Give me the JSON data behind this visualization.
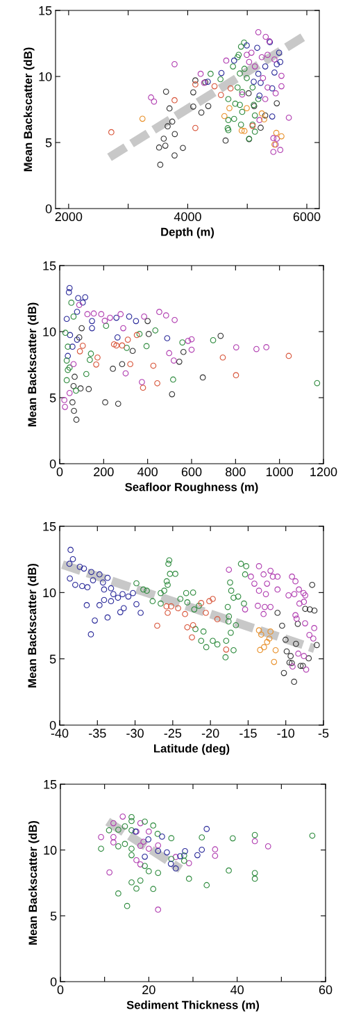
{
  "chart_data": [
    {
      "type": "scatter",
      "xlabel": "Depth (m)",
      "ylabel": "Mean Backscatter (dB)",
      "xlim": [
        1780,
        6210
      ],
      "ylim": [
        0,
        15
      ],
      "xticks": [
        2000,
        {
          "value": 3000,
          "label": null
        },
        4000,
        {
          "value": 5000,
          "label": null
        },
        6000
      ],
      "yticks": [
        0,
        5,
        10,
        15
      ],
      "marker": "circle",
      "series": [
        {
          "type": "line",
          "marker": "none",
          "color": "#c8c8c8",
          "line_style": "dashed",
          "x": [
            2686,
            5961
          ],
          "values": [
            3.88,
            13.05
          ]
        },
        {
          "color": "#333333",
          "x": [
            3636,
            3694,
            3740,
            3663,
            3783,
            3597,
            3519,
            3624,
            3919,
            3779,
            3539,
            4128,
            4093,
            4093,
            4229,
            4345,
            4295,
            4636,
            5023,
            5116,
            5225,
            5302,
            5496,
            5031
          ],
          "values": [
            8.85,
            7.58,
            6.58,
            6.23,
            5.64,
            5.29,
            4.62,
            4.76,
            4.59,
            4.02,
            3.32,
            9.7,
            8.8,
            7.72,
            7.27,
            7.76,
            9.56,
            5.15,
            8.73,
            7.76,
            6.12,
            7.05,
            7.97,
            5.26
          ]
        },
        {
          "color": "#2e8b3e",
          "x": [
            4384,
            4550,
            4895,
            4946,
            4837,
            4876,
            4837,
            4915,
            4682,
            4798,
            4876,
            4682,
            4779,
            4671,
            4682,
            4895,
            4915,
            5031,
            5128,
            5089,
            5128,
            5109,
            4992,
            4953,
            4760,
            4856,
            5089,
            5186
          ],
          "values": [
            10.2,
            9.79,
            12.26,
            12.56,
            11.46,
            10.23,
            9.17,
            8.82,
            8.29,
            7.94,
            7.85,
            6.7,
            6.79,
            6.08,
            5.94,
            6.35,
            7.32,
            5.29,
            5.82,
            6.35,
            7.05,
            7.85,
            9.88,
            10.58,
            10.76,
            11.64,
            9.17,
            8.29
          ]
        },
        {
          "color": "#2a2a9a",
          "x": [
            4566,
            4779,
            4992,
            5167,
            5380,
            5535,
            5554,
            5457,
            5419,
            5205,
            5225,
            5109,
            5419,
            4337,
            5186,
            5302,
            5496
          ],
          "values": [
            10.26,
            11.2,
            12.35,
            12.17,
            12.6,
            11.8,
            11.1,
            10.3,
            9.1,
            8.55,
            9.52,
            9.6,
            6.97,
            9.6,
            10.2,
            10.76,
            10.93
          ]
        },
        {
          "color": "#b03cb0",
          "x": [
            3779,
            3384,
            3434,
            4217,
            4275,
            4647,
            5186,
            5310,
            5372,
            5070,
            5031,
            5128,
            5244,
            5341,
            5457,
            5574,
            5574,
            5477,
            5341,
            5302,
            5205,
            5698,
            5438,
            5496,
            5477,
            5438,
            5554,
            4915,
            5264,
            4992
          ],
          "values": [
            10.93,
            8.41,
            8.1,
            10.2,
            9.52,
            11.2,
            13.35,
            13.0,
            12.66,
            11.8,
            11.1,
            10.76,
            11.46,
            11.64,
            11.29,
            10.05,
            9.26,
            8.73,
            9.17,
            8.29,
            6.7,
            6.88,
            5.33,
            5.29,
            4.85,
            4.29,
            4.44,
            8.64,
            9.88,
            11.64
          ]
        },
        {
          "color": "#d8553a",
          "x": [
            2717,
            3779,
            4128,
            4128,
            4450,
            4558,
            4720,
            5089
          ],
          "values": [
            5.78,
            8.2,
            6.1,
            9.4,
            9.26,
            8.6,
            9.1,
            6.26
          ]
        },
        {
          "color": "#e8902a",
          "x": [
            3240,
            4700,
            4616,
            4907,
            4953,
            5244,
            5283,
            5488,
            5457,
            5574,
            4992
          ],
          "values": [
            6.8,
            7.6,
            7.0,
            5.9,
            5.87,
            7.2,
            6.75,
            5.73,
            4.85,
            5.47,
            7.6
          ]
        }
      ]
    },
    {
      "type": "scatter",
      "xlabel": "Seafloor Roughness (m)",
      "ylabel": "Mean Backscatter (dB)",
      "xlim": [
        0,
        1200
      ],
      "ylim": [
        0,
        15
      ],
      "xticks": [
        0,
        200,
        400,
        600,
        800,
        1000,
        1200
      ],
      "yticks": [
        0,
        5,
        10,
        15
      ],
      "marker": "circle",
      "series": [
        {
          "color": "#2a2a9a",
          "x": [
            45,
            42,
            84,
            116,
            105,
            79,
            147,
            258,
            316,
            347,
            263,
            32,
            47,
            79,
            58,
            37,
            489,
            147
          ],
          "values": [
            13.3,
            12.98,
            12.54,
            12.6,
            12.2,
            11.5,
            10.8,
            11.05,
            11.14,
            10.8,
            9.56,
            10.96,
            9.74,
            9.39,
            8.86,
            8.16,
            9.5,
            10.26
          ]
        },
        {
          "color": "#333333",
          "x": [
            76,
            65,
            58,
            95,
            132,
            207,
            266,
            511,
            544,
            563,
            651,
            732,
            284,
            242,
            332,
            400,
            405,
            63,
            68,
            89,
            100
          ],
          "values": [
            3.33,
            4.0,
            4.65,
            5.7,
            5.65,
            4.65,
            4.54,
            5.26,
            7.72,
            8.46,
            6.53,
            9.68,
            7.54,
            7.19,
            8.54,
            10.8,
            9.82,
            5.88,
            6.58,
            9.56,
            10.26
          ]
        },
        {
          "color": "#2e8b3e",
          "x": [
            1171,
            698,
            558,
            516,
            435,
            363,
            395,
            305,
            142,
            137,
            121,
            63,
            53,
            26,
            37,
            32,
            37,
            32,
            45,
            74,
            211
          ],
          "values": [
            6.1,
            9.35,
            9.18,
            6.37,
            10.09,
            9.82,
            8.9,
            8.77,
            8.33,
            7.86,
            6.79,
            11.14,
            12.19,
            9.91,
            8.86,
            7.81,
            7.1,
            6.32,
            7.28,
            5.53,
            10.44
          ]
        },
        {
          "color": "#b03cb0",
          "x": [
            21,
            24,
            45,
            63,
            89,
            126,
            155,
            189,
            229,
            277,
            384,
            453,
            484,
            523,
            498,
            519,
            584,
            600,
            600,
            803,
            895,
            940,
            300,
            374,
            205,
            289
          ],
          "values": [
            4.82,
            4.3,
            5.35,
            7.54,
            12.02,
            11.32,
            11.37,
            11.32,
            11.05,
            11.32,
            11.14,
            11.49,
            11.23,
            10.88,
            8.37,
            7.81,
            9.3,
            9.42,
            8.63,
            8.81,
            8.68,
            8.82,
            6.84,
            6.18,
            10.82,
            10.26
          ]
        },
        {
          "color": "#d8553a",
          "x": [
            92,
            172,
            166,
            105,
            247,
            258,
            284,
            321,
            379,
            426,
            444,
            742,
            802,
            1042,
            351,
            310
          ],
          "values": [
            8.51,
            8.04,
            7.51,
            8.93,
            9.04,
            8.95,
            8.95,
            7.54,
            5.75,
            7.42,
            6.09,
            8.04,
            6.7,
            8.16,
            9.74,
            9.39
          ]
        }
      ]
    },
    {
      "type": "scatter",
      "xlabel": "Latitude (deg)",
      "ylabel": "Mean Backscatter (dB)",
      "xlim": [
        -40,
        -5
      ],
      "ylim": [
        0,
        15
      ],
      "xticks": [
        -40,
        -35,
        -30,
        -25,
        -20,
        -15,
        -10,
        -5
      ],
      "yticks": [
        0,
        5,
        10,
        15
      ],
      "marker": "circle",
      "series": [
        {
          "type": "line",
          "marker": "none",
          "color": "#c8c8c8",
          "line_style": "dashed",
          "x": [
            -39.63,
            -6.2
          ],
          "values": [
            12.11,
            5.77
          ]
        },
        {
          "color": "#2a2a9a",
          "x": [
            -38.56,
            -38.71,
            -38.25,
            -37.33,
            -36.78,
            -38.65,
            -37.94,
            -37.02,
            -36.32,
            -35.8,
            -35.58,
            -34.72,
            -34.26,
            -33.65,
            -34.11,
            -33.19,
            -32.88,
            -32.27,
            -33.19,
            -31.66,
            -30.89,
            -34.11,
            -34.72,
            -36.41,
            -33.65,
            -35.34,
            -35.86,
            -31.5,
            -31.96,
            -29.26,
            -29.82,
            -30.28
          ],
          "values": [
            13.22,
            12.17,
            12.52,
            11.94,
            11.81,
            11.06,
            10.58,
            10.49,
            10.4,
            11.55,
            10.93,
            11.37,
            10.76,
            11.11,
            10.23,
            10.32,
            9.88,
            9.61,
            9.35,
            9.88,
            9.7,
            9.44,
            9.05,
            9.05,
            8.12,
            7.89,
            6.85,
            8.82,
            8.52,
            8.47,
            9.12,
            9.96
          ]
        },
        {
          "color": "#2e8b3e",
          "x": [
            -29.82,
            -28.9,
            -28.44,
            -27.67,
            -26.6,
            -26.13,
            -25.67,
            -25.46,
            -25.58,
            -25.37,
            -24.66,
            -25.8,
            -26.6,
            -23.99,
            -23.22,
            -22.3,
            -23.07,
            -22.15,
            -21.99,
            -21.23,
            -20.55,
            -20.92,
            -19.69,
            -19.08,
            -18.0,
            -16.93,
            -17.91,
            -17.3,
            -16.62,
            -17.55,
            -17.6,
            -17.7,
            -17.24,
            -16.93,
            -16.32,
            -15.55,
            -15.95,
            -15.4,
            -15.25,
            -17.39,
            -21.53
          ],
          "values": [
            10.7,
            10.23,
            10.14,
            9.35,
            9.96,
            10.14,
            10.58,
            12.43,
            12.17,
            11.41,
            11.41,
            10.85,
            9.17,
            9.52,
            9.96,
            10.0,
            9.26,
            8.73,
            7.24,
            6.36,
            5.88,
            7.06,
            6.36,
            6.09,
            5.12,
            5.65,
            6.36,
            6.97,
            7.54,
            8.2,
            7.82,
            8.91,
            10.14,
            9.61,
            9.7,
            9.17,
            12.17,
            11.37,
            11.99,
            10.76,
            9.0
          ]
        },
        {
          "color": "#d8553a",
          "x": [
            -27.06,
            -25.83,
            -25.21,
            -24.29,
            -25.67,
            -23.37,
            -23.07,
            -22.45,
            -22.3,
            -21.23,
            -19.69,
            -20.15,
            -20.61,
            -19.08,
            -17.91
          ],
          "values": [
            7.5,
            8.96,
            8.96,
            8.82,
            8.47,
            8.38,
            7.38,
            6.62,
            7.54,
            9.21,
            9.52,
            9.35,
            8.47,
            7.99,
            5.7
          ]
        },
        {
          "color": "#e8902a",
          "x": [
            -13.56,
            -13.26,
            -13.41,
            -12.89,
            -12.48,
            -12.03,
            -11.35,
            -11.56,
            -12.18
          ],
          "values": [
            7.15,
            6.83,
            5.67,
            5.88,
            6.27,
            7.06,
            5.65,
            4.77,
            6.53
          ]
        },
        {
          "color": "#333333",
          "x": [
            -10.49,
            -10.03,
            -9.88,
            -10.25,
            -9.36,
            -9.51,
            -9.2,
            -8.9,
            -8.65,
            -8.04,
            -7.73,
            -8.41,
            -7.42,
            -6.81,
            -6.2,
            -6.5,
            -5.89,
            -6.96,
            -11.1
          ],
          "values": [
            7.5,
            6.44,
            5.56,
            3.93,
            5.21,
            4.72,
            4.68,
            3.27,
            6.13,
            4.47,
            4.47,
            7.64,
            8.77,
            8.73,
            8.64,
            10.58,
            6.04,
            5.04,
            8.47
          ]
        },
        {
          "color": "#b03cb0",
          "x": [
            -13.56,
            -14.63,
            -14.17,
            -13.56,
            -12.95,
            -12.49,
            -12.03,
            -11.72,
            -11.1,
            -11.1,
            -12.64,
            -12.79,
            -13.71,
            -12.95,
            -12.03,
            -15.4,
            -17.55,
            -9.18,
            -8.72,
            -9.64,
            -8.87,
            -8.26,
            -7.65,
            -7.42,
            -8.19,
            -7.6,
            -8.72,
            -8.56,
            -7.44,
            -6.23,
            -6.87,
            -6.35,
            -8.35,
            -7.6,
            -7.3,
            -9.1
          ],
          "values": [
            11.99,
            11.2,
            10.67,
            10.14,
            11.37,
            10.67,
            11.64,
            11.2,
            11.2,
            10.23,
            9.88,
            8.91,
            9.0,
            8.38,
            8.91,
            8.73,
            11.72,
            11.2,
            10.85,
            9.79,
            9.88,
            10.23,
            9.96,
            9.79,
            9.17,
            9.3,
            8.29,
            8.03,
            7.68,
            7.32,
            6.8,
            6.53,
            5.39,
            5.21,
            4.19,
            4.42
          ]
        }
      ]
    },
    {
      "type": "scatter",
      "xlabel": "Sediment Thickness (m)",
      "ylabel": "Mean Backscatter (dB)",
      "xlim": [
        0,
        60
      ],
      "ylim": [
        0,
        15
      ],
      "xticks": [
        0,
        {
          "value": 10,
          "label": null
        },
        20,
        {
          "value": 30,
          "label": null
        },
        40,
        {
          "value": 50,
          "label": null
        },
        60
      ],
      "yticks": [
        0,
        5,
        10,
        15
      ],
      "marker": "circle",
      "series": [
        {
          "type": "line",
          "marker": "none",
          "color": "#c8c8c8",
          "line_style": "dashed",
          "x": [
            10.7,
            27.2
          ],
          "values": [
            12.16,
            8.56
          ]
        },
        {
          "color": "#b03cb0",
          "x": [
            9.2,
            12.0,
            12.0,
            12.0,
            11.1,
            14.1,
            17.2,
            18.1,
            18.1,
            18.8,
            20.0,
            20.0,
            17.2,
            18.1,
            22.1,
            22.1,
            26.1,
            29.1,
            35.0,
            35.0,
            44.0,
            47.0
          ],
          "values": [
            10.98,
            12.04,
            10.98,
            10.58,
            8.3,
            12.54,
            11.4,
            12.04,
            10.32,
            10.63,
            11.4,
            10.1,
            9.23,
            8.91,
            5.47,
            10.35,
            9.47,
            9.0,
            10.05,
            9.56,
            10.67,
            10.28
          ]
        },
        {
          "color": "#2e8b3e",
          "x": [
            9.2,
            11.0,
            13.1,
            13.1,
            14.6,
            16.1,
            16.1,
            16.1,
            14.6,
            16.1,
            16.1,
            19.1,
            21.0,
            22.0,
            25.1,
            19.1,
            20.0,
            22.1,
            13.1,
            15.1,
            16.1,
            17.2,
            18.1,
            21.0,
            25.1,
            28.0,
            28.0,
            29.1,
            32.0,
            33.1,
            38.1,
            39.0,
            44.0,
            44.0,
            44.0,
            57.0
          ],
          "values": [
            10.1,
            11.5,
            11.54,
            10.28,
            11.8,
            12.5,
            12.2,
            11.5,
            10.46,
            10.1,
            9.61,
            12.16,
            11.86,
            11.23,
            10.9,
            8.79,
            8.39,
            8.26,
            6.7,
            5.75,
            7.54,
            7.07,
            7.68,
            7.04,
            9.32,
            9.58,
            9.18,
            7.82,
            10.96,
            7.33,
            8.44,
            10.89,
            11.14,
            8.25,
            7.82,
            11.09
          ]
        },
        {
          "color": "#2a2a9a",
          "x": [
            19.9,
            23.0,
            24.1,
            22.1,
            25.0,
            26.1,
            27.1,
            28.2,
            31.0,
            32.0,
            33.1,
            19.1,
            17.0
          ],
          "values": [
            10.81,
            11.02,
            9.82,
            9.93,
            8.95,
            8.6,
            9.53,
            9.91,
            9.61,
            10.02,
            11.6,
            9.49,
            11.4
          ]
        }
      ]
    }
  ]
}
